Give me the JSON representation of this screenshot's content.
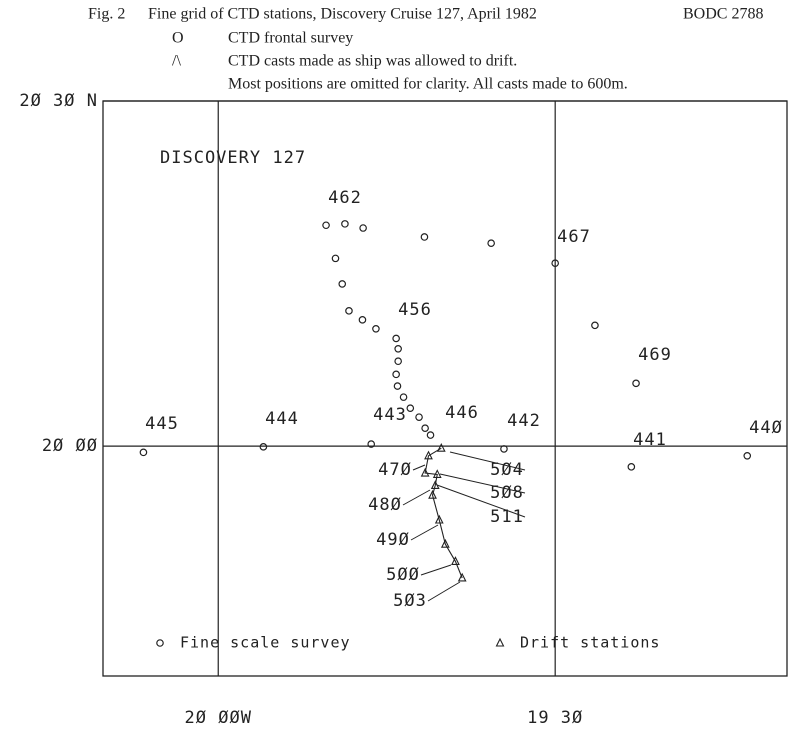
{
  "header": {
    "figure": "Fig. 2",
    "title": "Fine grid of CTD stations, Discovery Cruise 127, April 1982",
    "reference": "BODC 2788",
    "key": [
      {
        "symbol": "O",
        "text": "CTD frontal survey"
      },
      {
        "symbol": "/\\",
        "text": "CTD casts made as ship was allowed to drift."
      }
    ],
    "note": "Most positions are omitted for clarity. All casts made to 600m."
  },
  "chart_data": {
    "type": "scatter",
    "title": "DISCOVERY 127",
    "xlim": [
      -20.171,
      -19.156
    ],
    "ylim": [
      19.667,
      20.5
    ],
    "xticks": [
      {
        "value": -20,
        "label": "2Ø ØØW"
      },
      {
        "value": -19.5,
        "label": "19 3Ø"
      }
    ],
    "yticks": [
      {
        "value": 20.5,
        "label": "2Ø 3Ø N"
      },
      {
        "value": 20,
        "label": "2Ø ØØ"
      }
    ],
    "grid": true,
    "series": [
      {
        "name": "Fine scale survey",
        "marker": "circle",
        "color": "#222222",
        "x": [
          -20.111,
          -19.933,
          -19.84,
          -19.812,
          -19.785,
          -19.826,
          -19.816,
          -19.806,
          -19.786,
          -19.766,
          -19.736,
          -19.733,
          -19.733,
          -19.736,
          -19.734,
          -19.725,
          -19.715,
          -19.702,
          -19.693,
          -19.685,
          -19.773,
          -19.694,
          -19.595,
          -19.5,
          -19.441,
          -19.38,
          -19.576,
          -19.387,
          -19.215
        ],
        "y": [
          19.991,
          19.999,
          20.32,
          20.322,
          20.316,
          20.272,
          20.235,
          20.196,
          20.183,
          20.17,
          20.156,
          20.141,
          20.123,
          20.104,
          20.087,
          20.071,
          20.055,
          20.042,
          20.026,
          20.016,
          20.003,
          20.303,
          20.294,
          20.265,
          20.175,
          20.091,
          19.996,
          19.97,
          19.986
        ]
      },
      {
        "name": "Drift stations",
        "marker": "triangle",
        "color": "#222222",
        "x": [
          -19.669,
          -19.688,
          -19.693,
          -19.675,
          -19.678,
          -19.682,
          -19.672,
          -19.663,
          -19.648,
          -19.638
        ],
        "y": [
          19.997,
          19.986,
          19.961,
          19.959,
          19.943,
          19.929,
          19.893,
          19.858,
          19.833,
          19.809
        ]
      }
    ],
    "station_labels": [
      "462",
      "467",
      "456",
      "469",
      "445",
      "444",
      "443",
      "446",
      "442",
      "441",
      "44Ø",
      "47Ø",
      "5Ø4",
      "5Ø8",
      "511",
      "48Ø",
      "49Ø",
      "5ØØ",
      "5Ø3"
    ]
  }
}
